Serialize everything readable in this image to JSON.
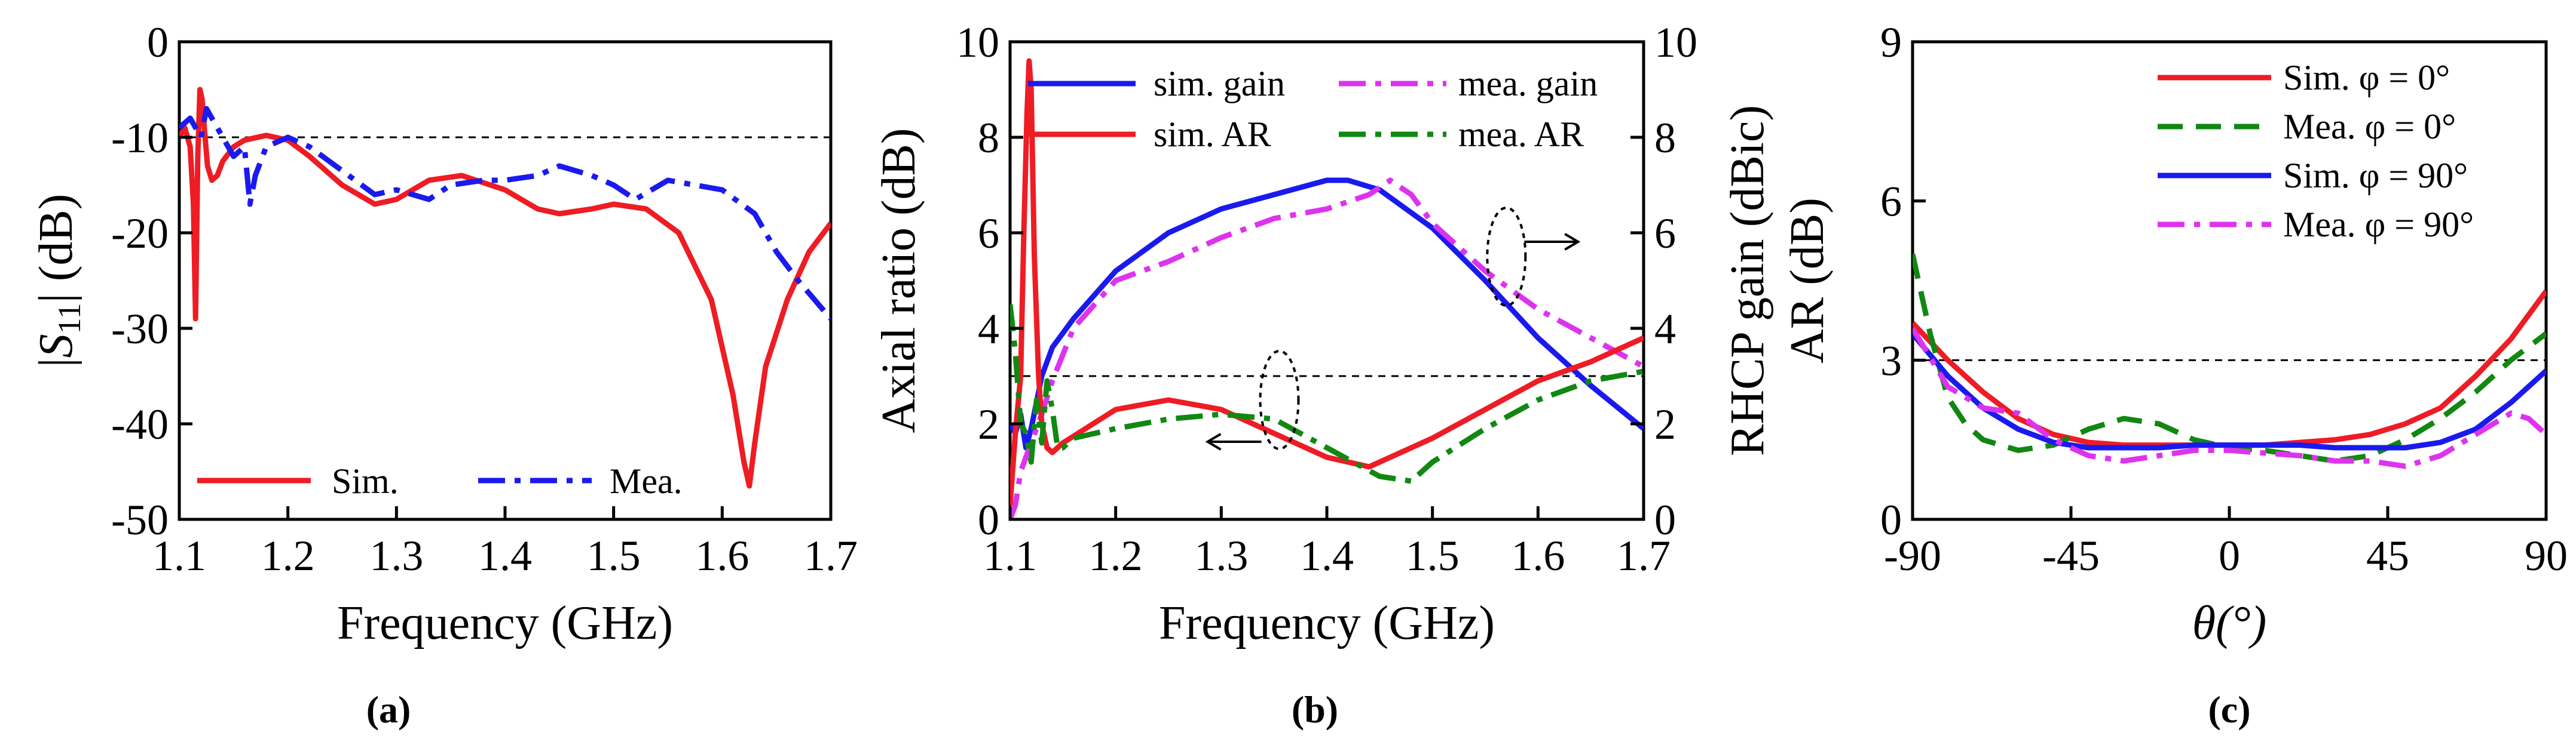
{
  "chart_data": [
    {
      "id": "a",
      "type": "line",
      "caption": "(a)",
      "xlabel": "Frequency (GHz)",
      "ylabel": "|S11| (dB)",
      "xlim": [
        1.1,
        1.7
      ],
      "ylim": [
        -50,
        0
      ],
      "xticks": [
        "1.1",
        "1.2",
        "1.3",
        "1.4",
        "1.5",
        "1.6",
        "1.7"
      ],
      "yticks": [
        "0",
        "-10",
        "-20",
        "-30",
        "-40",
        "-50"
      ],
      "reference_line": -10,
      "legend": [
        "Sim.",
        "Mea."
      ],
      "series": [
        {
          "name": "Sim.",
          "color": "#ee1c24",
          "style": "solid",
          "x": [
            1.1,
            1.105,
            1.11,
            1.113,
            1.115,
            1.117,
            1.119,
            1.121,
            1.123,
            1.126,
            1.13,
            1.135,
            1.14,
            1.15,
            1.16,
            1.18,
            1.2,
            1.22,
            1.25,
            1.28,
            1.3,
            1.33,
            1.36,
            1.4,
            1.43,
            1.45,
            1.48,
            1.5,
            1.53,
            1.56,
            1.59,
            1.61,
            1.62,
            1.625,
            1.63,
            1.64,
            1.66,
            1.68,
            1.7
          ],
          "values": [
            -10,
            -9,
            -11,
            -17,
            -29,
            -12,
            -5,
            -6,
            -9,
            -13,
            -14.5,
            -14,
            -12.5,
            -11,
            -10.3,
            -9.8,
            -10.3,
            -12,
            -15,
            -17,
            -16.5,
            -14.5,
            -14,
            -15.5,
            -17.5,
            -18,
            -17.5,
            -17,
            -17.5,
            -20,
            -27,
            -37,
            -44,
            -46.5,
            -42,
            -34,
            -27,
            -22,
            -19
          ]
        },
        {
          "name": "Mea.",
          "color": "#1a1aee",
          "style": "dash-dot",
          "x": [
            1.1,
            1.11,
            1.12,
            1.125,
            1.13,
            1.14,
            1.15,
            1.16,
            1.165,
            1.17,
            1.18,
            1.2,
            1.22,
            1.25,
            1.28,
            1.3,
            1.33,
            1.35,
            1.38,
            1.4,
            1.43,
            1.45,
            1.48,
            1.5,
            1.52,
            1.55,
            1.6,
            1.63,
            1.65,
            1.67,
            1.7
          ],
          "values": [
            -9,
            -8,
            -10,
            -7,
            -8,
            -10,
            -12,
            -11,
            -17,
            -14,
            -11,
            -10,
            -11,
            -13.5,
            -16,
            -15.5,
            -16.5,
            -15,
            -14.5,
            -14.5,
            -14,
            -13,
            -14,
            -15,
            -16.5,
            -14.5,
            -15.5,
            -18,
            -22,
            -25,
            -29
          ]
        }
      ]
    },
    {
      "id": "b",
      "type": "line",
      "caption": "(b)",
      "xlabel": "Frequency (GHz)",
      "ylabel_left": "Axial ratio (dB)",
      "ylabel_right": "RHCP gain (dBic)",
      "xlim": [
        1.1,
        1.7
      ],
      "ylim_left": [
        0,
        10
      ],
      "ylim_right": [
        0,
        10
      ],
      "xticks": [
        "1.1",
        "1.2",
        "1.3",
        "1.4",
        "1.5",
        "1.6",
        "1.7"
      ],
      "yticks_left": [
        "0",
        "2",
        "4",
        "6",
        "8",
        "10"
      ],
      "yticks_right": [
        "0",
        "2",
        "4",
        "6",
        "8",
        "10"
      ],
      "reference_line": 3,
      "legend": [
        "sim. gain",
        "mea. gain",
        "sim. AR",
        "mea. AR"
      ],
      "series": [
        {
          "name": "sim. gain",
          "axis": "right",
          "color": "#1a1aee",
          "style": "solid",
          "x": [
            1.1,
            1.105,
            1.11,
            1.115,
            1.12,
            1.13,
            1.14,
            1.16,
            1.2,
            1.25,
            1.3,
            1.35,
            1.4,
            1.42,
            1.45,
            1.5,
            1.55,
            1.6,
            1.65,
            1.7
          ],
          "values": [
            2,
            1.8,
            2.2,
            1.5,
            1.9,
            3,
            3.6,
            4.2,
            5.2,
            6,
            6.5,
            6.8,
            7.1,
            7.1,
            6.9,
            6.1,
            5,
            3.8,
            2.8,
            1.9
          ]
        },
        {
          "name": "mea. gain",
          "axis": "right",
          "color": "#dd33ee",
          "style": "dash-dot",
          "x": [
            1.1,
            1.105,
            1.11,
            1.115,
            1.12,
            1.13,
            1.14,
            1.16,
            1.2,
            1.25,
            1.3,
            1.35,
            1.4,
            1.44,
            1.46,
            1.48,
            1.5,
            1.55,
            1.6,
            1.65,
            1.7
          ],
          "values": [
            0,
            0.3,
            1,
            1.3,
            1.6,
            2.2,
            2.9,
            4,
            5,
            5.4,
            5.9,
            6.3,
            6.5,
            6.8,
            7.1,
            6.8,
            6.2,
            5.2,
            4.4,
            3.8,
            3.2
          ]
        },
        {
          "name": "sim. AR",
          "axis": "left",
          "color": "#ee1c24",
          "style": "solid",
          "x": [
            1.1,
            1.105,
            1.11,
            1.113,
            1.116,
            1.118,
            1.12,
            1.123,
            1.127,
            1.13,
            1.135,
            1.14,
            1.15,
            1.2,
            1.25,
            1.3,
            1.35,
            1.4,
            1.44,
            1.5,
            1.55,
            1.6,
            1.65,
            1.7
          ],
          "values": [
            0.3,
            1.8,
            3,
            6,
            8.5,
            9.6,
            9,
            5.5,
            3,
            2,
            1.5,
            1.4,
            1.6,
            2.3,
            2.5,
            2.3,
            1.8,
            1.3,
            1.1,
            1.7,
            2.3,
            2.9,
            3.3,
            3.8
          ]
        },
        {
          "name": "mea. AR",
          "axis": "left",
          "color": "#118811",
          "style": "dash-dot",
          "x": [
            1.1,
            1.105,
            1.11,
            1.115,
            1.12,
            1.125,
            1.13,
            1.135,
            1.14,
            1.145,
            1.15,
            1.16,
            1.2,
            1.25,
            1.3,
            1.35,
            1.4,
            1.45,
            1.48,
            1.5,
            1.55,
            1.6,
            1.65,
            1.7
          ],
          "values": [
            4.5,
            3.5,
            2,
            1.8,
            1.2,
            2.5,
            1.6,
            2.9,
            2.3,
            1.5,
            1.5,
            1.7,
            1.9,
            2.1,
            2.2,
            2.1,
            1.5,
            0.9,
            0.8,
            1.2,
            1.9,
            2.5,
            2.9,
            3.1
          ]
        }
      ],
      "annotations": [
        {
          "kind": "ellipse",
          "x": 1.355,
          "y": 2.5,
          "axis": "left",
          "arrow": "left"
        },
        {
          "kind": "ellipse",
          "x": 1.57,
          "y": 5.5,
          "axis": "right",
          "arrow": "right"
        }
      ]
    },
    {
      "id": "c",
      "type": "line",
      "caption": "(c)",
      "xlabel": "θ(°)",
      "ylabel": "AR (dB)",
      "xlim": [
        -90,
        90
      ],
      "ylim": [
        0,
        9
      ],
      "xticks": [
        "-90",
        "-45",
        "0",
        "45",
        "90"
      ],
      "yticks": [
        "0",
        "3",
        "6",
        "9"
      ],
      "reference_line": 3,
      "legend": [
        "Sim. φ = 0°",
        "Mea. φ = 0°",
        "Sim. φ = 90°",
        "Mea. φ = 90°"
      ],
      "series": [
        {
          "name": "Sim. φ = 0°",
          "color": "#ee1c24",
          "style": "solid",
          "x": [
            -90,
            -80,
            -70,
            -60,
            -50,
            -40,
            -30,
            -20,
            -10,
            0,
            10,
            20,
            30,
            40,
            50,
            60,
            70,
            80,
            90
          ],
          "values": [
            3.7,
            3,
            2.4,
            1.9,
            1.6,
            1.45,
            1.4,
            1.4,
            1.4,
            1.4,
            1.4,
            1.45,
            1.5,
            1.6,
            1.8,
            2.1,
            2.7,
            3.4,
            4.3
          ]
        },
        {
          "name": "Mea. φ = 0°",
          "color": "#118811",
          "style": "dashed",
          "x": [
            -90,
            -85,
            -80,
            -75,
            -70,
            -60,
            -50,
            -40,
            -30,
            -20,
            -10,
            0,
            10,
            20,
            30,
            40,
            50,
            60,
            70,
            80,
            90
          ],
          "values": [
            5,
            3.5,
            2.3,
            1.8,
            1.5,
            1.3,
            1.4,
            1.7,
            1.9,
            1.8,
            1.5,
            1.35,
            1.3,
            1.2,
            1.1,
            1.2,
            1.5,
            1.9,
            2.4,
            3,
            3.5
          ]
        },
        {
          "name": "Sim. φ = 90°",
          "color": "#1a1aee",
          "style": "solid",
          "x": [
            -90,
            -80,
            -70,
            -60,
            -50,
            -40,
            -30,
            -20,
            -10,
            0,
            10,
            20,
            30,
            40,
            50,
            60,
            70,
            80,
            90
          ],
          "values": [
            3.5,
            2.7,
            2.1,
            1.7,
            1.45,
            1.35,
            1.35,
            1.35,
            1.4,
            1.4,
            1.4,
            1.4,
            1.35,
            1.35,
            1.35,
            1.45,
            1.7,
            2.2,
            2.8
          ]
        },
        {
          "name": "Mea. φ = 90°",
          "color": "#dd33ee",
          "style": "dash-dot",
          "x": [
            -90,
            -80,
            -70,
            -60,
            -50,
            -40,
            -30,
            -20,
            -10,
            0,
            10,
            20,
            30,
            40,
            45,
            50,
            60,
            70,
            80,
            85,
            90
          ],
          "values": [
            3.6,
            2.5,
            2.1,
            2,
            1.5,
            1.2,
            1.1,
            1.2,
            1.3,
            1.3,
            1.25,
            1.2,
            1.1,
            1.1,
            1.05,
            1,
            1.2,
            1.6,
            2,
            1.9,
            1.6
          ]
        }
      ]
    }
  ]
}
